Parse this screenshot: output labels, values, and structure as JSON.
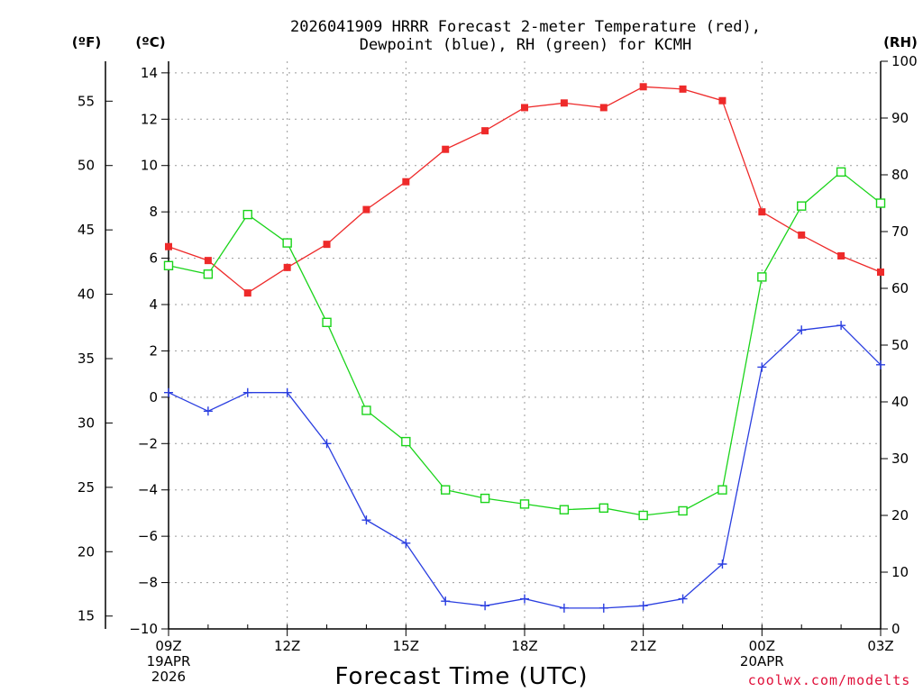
{
  "chart_data": {
    "type": "line",
    "title_line1": "2026041909 HRRR Forecast 2-meter Temperature (red),",
    "title_line2": "Dewpoint (blue), RH (green) for KCMH",
    "xlabel": "Forecast Time (UTC)",
    "credit": "coolwx.com/modelts",
    "left_outer_unit": "(ºF)",
    "left_inner_unit": "(ºC)",
    "right_unit": "(RH)",
    "hours": [
      9,
      10,
      11,
      12,
      13,
      14,
      15,
      16,
      17,
      18,
      19,
      20,
      21,
      22,
      23,
      24,
      25,
      26,
      27
    ],
    "x_ticks": [
      {
        "hour": 9,
        "lines": [
          "09Z",
          "19APR",
          "2026"
        ]
      },
      {
        "hour": 12,
        "lines": [
          "12Z"
        ]
      },
      {
        "hour": 15,
        "lines": [
          "15Z"
        ]
      },
      {
        "hour": 18,
        "lines": [
          "18Z"
        ]
      },
      {
        "hour": 21,
        "lines": [
          "21Z"
        ]
      },
      {
        "hour": 24,
        "lines": [
          "00Z",
          "20APR"
        ]
      },
      {
        "hour": 27,
        "lines": [
          "03Z"
        ]
      }
    ],
    "xlim": [
      9,
      27
    ],
    "ylim_c": [
      -10,
      14.5
    ],
    "ylim_rh": [
      0,
      100
    ],
    "y_ticks_c": [
      "−10",
      "−8",
      "−6",
      "−4",
      "−2",
      "0",
      "2",
      "4",
      "6",
      "8",
      "10",
      "12",
      "14"
    ],
    "y_ticks_c_values": [
      -10,
      -8,
      -6,
      -4,
      -2,
      0,
      2,
      4,
      6,
      8,
      10,
      12,
      14
    ],
    "y_ticks_f": [
      "15",
      "20",
      "25",
      "30",
      "35",
      "40",
      "45",
      "50",
      "55"
    ],
    "y_ticks_f_values": [
      15,
      20,
      25,
      30,
      35,
      40,
      45,
      50,
      55
    ],
    "y_ticks_rh": [
      "0",
      "10",
      "20",
      "30",
      "40",
      "50",
      "60",
      "70",
      "80",
      "90",
      "100"
    ],
    "y_ticks_rh_values": [
      0,
      10,
      20,
      30,
      40,
      50,
      60,
      70,
      80,
      90,
      100
    ],
    "series": [
      {
        "name": "Temperature",
        "unit": "C",
        "color": "#ee2a2a",
        "marker": "filled-square",
        "values": [
          6.5,
          5.9,
          4.5,
          5.6,
          6.6,
          8.1,
          9.3,
          10.7,
          11.5,
          12.5,
          12.7,
          12.5,
          13.4,
          13.3,
          12.8,
          8.0,
          7.0,
          6.1,
          5.4
        ]
      },
      {
        "name": "Dewpoint",
        "unit": "C",
        "color": "#2a3ee0",
        "marker": "plus",
        "values": [
          0.2,
          -0.6,
          0.2,
          0.2,
          -2.0,
          -5.3,
          -6.3,
          -8.8,
          -9.0,
          -8.7,
          -9.1,
          -9.1,
          -9.0,
          -8.7,
          -7.2,
          1.3,
          2.9,
          3.1,
          1.4
        ]
      },
      {
        "name": "RH",
        "unit": "%",
        "color": "#1ad41a",
        "marker": "open-square",
        "values": [
          64,
          62.5,
          73,
          68,
          54,
          38.5,
          33,
          24.5,
          23,
          22,
          21,
          21.3,
          20,
          20.8,
          24.5,
          62,
          74.5,
          80.5,
          75
        ]
      }
    ]
  }
}
